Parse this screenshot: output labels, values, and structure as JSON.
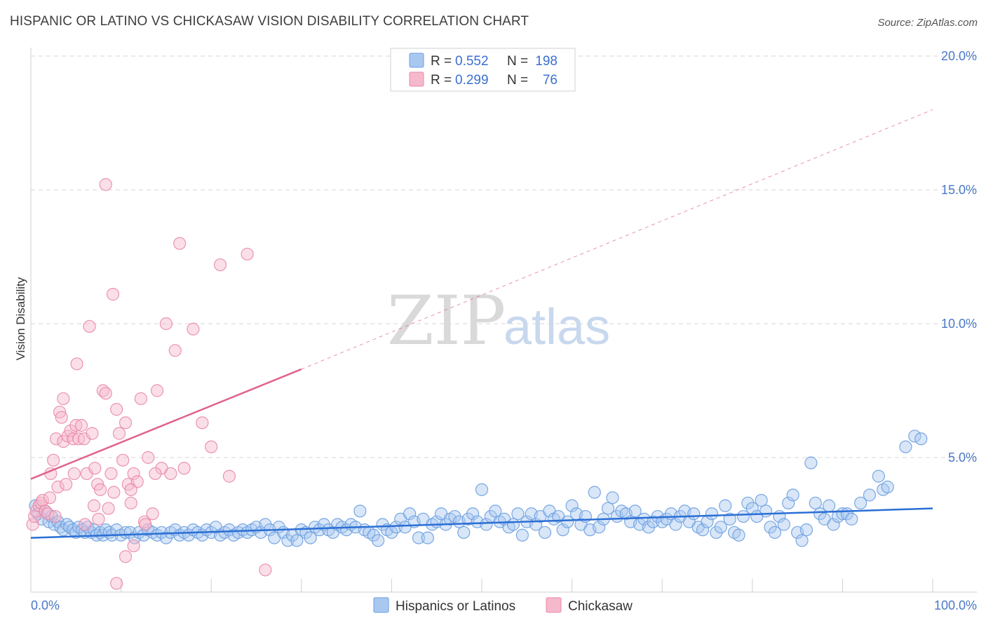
{
  "title": "HISPANIC OR LATINO VS CHICKASAW VISION DISABILITY CORRELATION CHART",
  "source": "Source: ZipAtlas.com",
  "watermark": {
    "part1": "ZIP",
    "part2": "atlas"
  },
  "colors": {
    "blue_fill": "#a9c8f0",
    "blue_stroke": "#6c9ee0",
    "blue_line": "#2b6fd4",
    "pink_fill": "#f6b8cb",
    "pink_stroke": "#e88aa8",
    "pink_line": "#e0628f",
    "grid": "#d6d6d6",
    "tick_text": "#4a78c8"
  },
  "legend": {
    "rows": [
      {
        "r_label": "R =",
        "r_value": "0.552",
        "n_label": "N =",
        "n_value": "198"
      },
      {
        "r_label": "R =",
        "r_value": "0.299",
        "n_label": "N =",
        "n_value": "76"
      }
    ]
  },
  "bottom_legend": {
    "series1": "Hispanics or Latinos",
    "series2": "Chickasaw"
  },
  "chart_data": {
    "type": "scatter",
    "title": "HISPANIC OR LATINO VS CHICKASAW VISION DISABILITY CORRELATION CHART",
    "xlabel": "",
    "ylabel": "Vision Disability",
    "xlim": [
      0,
      100
    ],
    "ylim": [
      0,
      21
    ],
    "x_tick_labels": [
      "0.0%",
      "100.0%"
    ],
    "y_ticks": [
      5,
      10,
      15,
      20
    ],
    "y_tick_labels": [
      "5.0%",
      "10.0%",
      "15.0%",
      "20.0%"
    ],
    "legend_position": "top-center",
    "series": [
      {
        "name": "Hispanics or Latinos",
        "R": 0.552,
        "N": 198,
        "trend": {
          "x0": 0,
          "y0": 2.0,
          "x1": 100,
          "y1": 3.1
        },
        "points": [
          [
            0.5,
            3.2
          ],
          [
            0.8,
            2.9
          ],
          [
            1.2,
            2.7
          ],
          [
            1.6,
            3.0
          ],
          [
            2.0,
            2.6
          ],
          [
            2.3,
            2.8
          ],
          [
            2.6,
            2.5
          ],
          [
            3.0,
            2.6
          ],
          [
            3.3,
            2.4
          ],
          [
            3.6,
            2.3
          ],
          [
            4.0,
            2.5
          ],
          [
            4.3,
            2.4
          ],
          [
            4.7,
            2.3
          ],
          [
            5.0,
            2.2
          ],
          [
            5.3,
            2.4
          ],
          [
            5.7,
            2.3
          ],
          [
            6.0,
            2.2
          ],
          [
            6.3,
            2.4
          ],
          [
            6.7,
            2.2
          ],
          [
            7.0,
            2.3
          ],
          [
            7.3,
            2.1
          ],
          [
            7.7,
            2.2
          ],
          [
            8.0,
            2.1
          ],
          [
            8.3,
            2.3
          ],
          [
            8.7,
            2.2
          ],
          [
            9.0,
            2.1
          ],
          [
            9.5,
            2.3
          ],
          [
            10.0,
            2.1
          ],
          [
            10.5,
            2.2
          ],
          [
            11.0,
            2.2
          ],
          [
            11.5,
            2.0
          ],
          [
            12.0,
            2.2
          ],
          [
            12.5,
            2.1
          ],
          [
            13.0,
            2.3
          ],
          [
            13.5,
            2.2
          ],
          [
            14.0,
            2.1
          ],
          [
            14.5,
            2.2
          ],
          [
            15.0,
            2.0
          ],
          [
            15.5,
            2.2
          ],
          [
            16.0,
            2.3
          ],
          [
            16.5,
            2.1
          ],
          [
            17.0,
            2.2
          ],
          [
            17.5,
            2.1
          ],
          [
            18.0,
            2.3
          ],
          [
            18.5,
            2.2
          ],
          [
            19.0,
            2.1
          ],
          [
            19.5,
            2.3
          ],
          [
            20.0,
            2.2
          ],
          [
            20.5,
            2.4
          ],
          [
            21.0,
            2.1
          ],
          [
            21.5,
            2.2
          ],
          [
            22.0,
            2.3
          ],
          [
            22.5,
            2.1
          ],
          [
            23.0,
            2.2
          ],
          [
            23.5,
            2.3
          ],
          [
            24.0,
            2.2
          ],
          [
            24.5,
            2.3
          ],
          [
            25.0,
            2.4
          ],
          [
            25.5,
            2.2
          ],
          [
            26.0,
            2.5
          ],
          [
            26.5,
            2.3
          ],
          [
            27.0,
            2.0
          ],
          [
            27.5,
            2.4
          ],
          [
            28.0,
            2.2
          ],
          [
            28.5,
            1.9
          ],
          [
            29.0,
            2.1
          ],
          [
            29.5,
            1.9
          ],
          [
            30.0,
            2.3
          ],
          [
            30.5,
            2.2
          ],
          [
            31.0,
            2.0
          ],
          [
            31.5,
            2.4
          ],
          [
            32.0,
            2.3
          ],
          [
            32.5,
            2.5
          ],
          [
            33.0,
            2.3
          ],
          [
            33.5,
            2.2
          ],
          [
            34.0,
            2.5
          ],
          [
            34.5,
            2.4
          ],
          [
            35.0,
            2.3
          ],
          [
            35.5,
            2.5
          ],
          [
            36.0,
            2.4
          ],
          [
            36.5,
            3.0
          ],
          [
            37.0,
            2.3
          ],
          [
            37.5,
            2.2
          ],
          [
            38.0,
            2.1
          ],
          [
            38.5,
            1.9
          ],
          [
            39.0,
            2.5
          ],
          [
            39.5,
            2.3
          ],
          [
            40.0,
            2.2
          ],
          [
            40.5,
            2.4
          ],
          [
            41.0,
            2.7
          ],
          [
            41.5,
            2.4
          ],
          [
            42.0,
            2.9
          ],
          [
            42.5,
            2.6
          ],
          [
            43.0,
            2.0
          ],
          [
            43.5,
            2.7
          ],
          [
            44.0,
            2.0
          ],
          [
            44.5,
            2.5
          ],
          [
            45.0,
            2.6
          ],
          [
            45.5,
            2.9
          ],
          [
            46.0,
            2.5
          ],
          [
            46.5,
            2.7
          ],
          [
            47.0,
            2.8
          ],
          [
            47.5,
            2.6
          ],
          [
            48.0,
            2.2
          ],
          [
            48.5,
            2.7
          ],
          [
            49.0,
            2.9
          ],
          [
            49.5,
            2.6
          ],
          [
            50.0,
            3.8
          ],
          [
            50.5,
            2.5
          ],
          [
            51.0,
            2.8
          ],
          [
            51.5,
            3.0
          ],
          [
            52.0,
            2.6
          ],
          [
            52.5,
            2.7
          ],
          [
            53.0,
            2.4
          ],
          [
            53.5,
            2.5
          ],
          [
            54.0,
            2.9
          ],
          [
            54.5,
            2.1
          ],
          [
            55.0,
            2.6
          ],
          [
            55.5,
            2.9
          ],
          [
            56.0,
            2.5
          ],
          [
            56.5,
            2.8
          ],
          [
            57.0,
            2.2
          ],
          [
            57.5,
            3.0
          ],
          [
            58.0,
            2.7
          ],
          [
            58.5,
            2.8
          ],
          [
            59.0,
            2.3
          ],
          [
            59.5,
            2.6
          ],
          [
            60.0,
            3.2
          ],
          [
            60.5,
            2.9
          ],
          [
            61.0,
            2.5
          ],
          [
            61.5,
            2.8
          ],
          [
            62.0,
            2.3
          ],
          [
            62.5,
            3.7
          ],
          [
            63.0,
            2.4
          ],
          [
            63.5,
            2.7
          ],
          [
            64.0,
            3.1
          ],
          [
            64.5,
            3.5
          ],
          [
            65.0,
            2.8
          ],
          [
            65.5,
            3.0
          ],
          [
            66.0,
            2.9
          ],
          [
            66.5,
            2.6
          ],
          [
            67.0,
            3.0
          ],
          [
            67.5,
            2.5
          ],
          [
            68.0,
            2.7
          ],
          [
            68.5,
            2.4
          ],
          [
            69.0,
            2.6
          ],
          [
            69.5,
            2.8
          ],
          [
            70.0,
            2.6
          ],
          [
            70.5,
            2.7
          ],
          [
            71.0,
            2.9
          ],
          [
            71.5,
            2.5
          ],
          [
            72.0,
            2.8
          ],
          [
            72.5,
            3.0
          ],
          [
            73.0,
            2.6
          ],
          [
            73.5,
            2.9
          ],
          [
            74.0,
            2.4
          ],
          [
            74.5,
            2.3
          ],
          [
            75.0,
            2.6
          ],
          [
            75.5,
            2.9
          ],
          [
            76.0,
            2.2
          ],
          [
            76.5,
            2.4
          ],
          [
            77.0,
            3.2
          ],
          [
            77.5,
            2.7
          ],
          [
            78.0,
            2.2
          ],
          [
            78.5,
            2.1
          ],
          [
            79.0,
            2.8
          ],
          [
            79.5,
            3.3
          ],
          [
            80.0,
            3.1
          ],
          [
            80.5,
            2.8
          ],
          [
            81.0,
            3.4
          ],
          [
            81.5,
            3.0
          ],
          [
            82.0,
            2.4
          ],
          [
            82.5,
            2.2
          ],
          [
            83.0,
            2.8
          ],
          [
            83.5,
            2.5
          ],
          [
            84.0,
            3.3
          ],
          [
            84.5,
            3.6
          ],
          [
            85.0,
            2.2
          ],
          [
            85.5,
            1.9
          ],
          [
            86.0,
            2.3
          ],
          [
            86.5,
            4.8
          ],
          [
            87.0,
            3.3
          ],
          [
            87.5,
            2.9
          ],
          [
            88.0,
            2.7
          ],
          [
            88.5,
            3.2
          ],
          [
            89.0,
            2.5
          ],
          [
            89.5,
            2.8
          ],
          [
            90.0,
            2.9
          ],
          [
            90.5,
            2.9
          ],
          [
            91.0,
            2.7
          ],
          [
            92.0,
            3.3
          ],
          [
            93.0,
            3.6
          ],
          [
            94.0,
            4.3
          ],
          [
            94.5,
            3.8
          ],
          [
            95.0,
            3.9
          ],
          [
            97.0,
            5.4
          ],
          [
            98.0,
            5.8
          ],
          [
            98.7,
            5.7
          ]
        ]
      },
      {
        "name": "Chickasaw",
        "R": 0.299,
        "N": 76,
        "trend": {
          "x0": 0,
          "y0": 4.2,
          "x1": 30,
          "y1": 8.3
        },
        "trend_extension": {
          "x0": 30,
          "y0": 8.3,
          "x1": 100,
          "y1": 18.0
        },
        "points": [
          [
            0.2,
            2.5
          ],
          [
            0.4,
            2.8
          ],
          [
            0.6,
            3.0
          ],
          [
            0.9,
            3.2
          ],
          [
            1.1,
            3.3
          ],
          [
            1.3,
            3.4
          ],
          [
            1.6,
            3.0
          ],
          [
            1.9,
            2.9
          ],
          [
            2.2,
            4.4
          ],
          [
            2.5,
            4.9
          ],
          [
            2.8,
            5.7
          ],
          [
            3.0,
            3.9
          ],
          [
            3.2,
            6.7
          ],
          [
            3.4,
            6.5
          ],
          [
            3.6,
            5.6
          ],
          [
            3.9,
            4.0
          ],
          [
            4.1,
            5.8
          ],
          [
            4.4,
            6.0
          ],
          [
            4.7,
            5.7
          ],
          [
            5.0,
            6.2
          ],
          [
            5.3,
            5.7
          ],
          [
            5.6,
            6.2
          ],
          [
            5.9,
            5.7
          ],
          [
            6.2,
            4.4
          ],
          [
            6.5,
            9.9
          ],
          [
            6.8,
            5.9
          ],
          [
            7.1,
            4.6
          ],
          [
            7.4,
            4.0
          ],
          [
            7.7,
            3.8
          ],
          [
            8.0,
            7.5
          ],
          [
            8.3,
            7.4
          ],
          [
            8.6,
            3.1
          ],
          [
            8.9,
            4.4
          ],
          [
            9.2,
            3.7
          ],
          [
            9.5,
            6.8
          ],
          [
            9.8,
            5.9
          ],
          [
            10.2,
            4.9
          ],
          [
            10.5,
            6.3
          ],
          [
            10.8,
            4.0
          ],
          [
            11.1,
            3.3
          ],
          [
            11.4,
            4.4
          ],
          [
            11.8,
            4.1
          ],
          [
            12.2,
            7.2
          ],
          [
            12.6,
            2.6
          ],
          [
            13.0,
            5.0
          ],
          [
            13.5,
            2.9
          ],
          [
            14.0,
            7.5
          ],
          [
            14.5,
            4.6
          ],
          [
            15.0,
            10.0
          ],
          [
            15.5,
            4.4
          ],
          [
            16.0,
            9.0
          ],
          [
            16.5,
            13.0
          ],
          [
            17.0,
            4.6
          ],
          [
            18.0,
            9.8
          ],
          [
            19.0,
            6.3
          ],
          [
            20.0,
            5.4
          ],
          [
            21.0,
            12.2
          ],
          [
            22.0,
            4.3
          ],
          [
            24.0,
            12.6
          ],
          [
            8.3,
            15.2
          ],
          [
            9.5,
            0.3
          ],
          [
            11.4,
            1.7
          ],
          [
            26.0,
            0.8
          ],
          [
            12.7,
            2.5
          ],
          [
            7.5,
            2.7
          ],
          [
            5.1,
            8.5
          ],
          [
            9.1,
            11.1
          ],
          [
            3.6,
            7.2
          ],
          [
            2.1,
            3.5
          ],
          [
            4.8,
            4.4
          ],
          [
            10.5,
            1.3
          ],
          [
            13.8,
            4.4
          ],
          [
            7.0,
            3.2
          ],
          [
            11.1,
            3.8
          ],
          [
            6.0,
            2.5
          ],
          [
            2.7,
            2.8
          ]
        ]
      }
    ]
  }
}
